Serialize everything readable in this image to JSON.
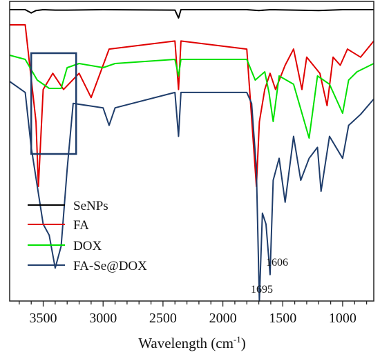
{
  "chart_data": {
    "type": "line",
    "title": "",
    "xlabel": "Wavelength (cm",
    "xlabel_sup": "-1",
    "xlabel_end": ")",
    "ylabel": "",
    "xlim": [
      3780,
      740
    ],
    "x_reversed": true,
    "y_ticks_shown": false,
    "grid": false,
    "legend_position": "bottom-left",
    "x_tick_labels": [
      "3500",
      "3000",
      "2500",
      "2000",
      "1500",
      "1000"
    ],
    "x_ticks": [
      3500,
      3000,
      2500,
      2000,
      1500,
      1000
    ],
    "series": [
      {
        "name": "SeNPs",
        "color": "#000000",
        "points": [
          [
            3780,
            1.0
          ],
          [
            3650,
            1.0
          ],
          [
            3600,
            0.6
          ],
          [
            3560,
            0.9
          ],
          [
            3500,
            1.0
          ],
          [
            3400,
            0.95
          ],
          [
            3300,
            0.95
          ],
          [
            3000,
            1.0
          ],
          [
            2400,
            0.95
          ],
          [
            2370,
            0.0
          ],
          [
            2350,
            1.0
          ],
          [
            2000,
            1.0
          ],
          [
            1800,
            1.0
          ],
          [
            1700,
            0.9
          ],
          [
            1600,
            1.0
          ],
          [
            1200,
            0.9
          ],
          [
            1000,
            1.0
          ],
          [
            740,
            1.0
          ]
        ]
      },
      {
        "name": "FA",
        "color": "#e00000",
        "points": [
          [
            3780,
            1.0
          ],
          [
            3650,
            1.0
          ],
          [
            3560,
            0.4
          ],
          [
            3540,
            0.0
          ],
          [
            3500,
            0.6
          ],
          [
            3420,
            0.7
          ],
          [
            3330,
            0.6
          ],
          [
            3200,
            0.7
          ],
          [
            3100,
            0.55
          ],
          [
            2950,
            0.85
          ],
          [
            2400,
            0.9
          ],
          [
            2370,
            0.6
          ],
          [
            2350,
            0.9
          ],
          [
            1800,
            0.85
          ],
          [
            1720,
            0.0
          ],
          [
            1695,
            0.4
          ],
          [
            1650,
            0.6
          ],
          [
            1606,
            0.7
          ],
          [
            1560,
            0.6
          ],
          [
            1480,
            0.75
          ],
          [
            1410,
            0.85
          ],
          [
            1340,
            0.6
          ],
          [
            1300,
            0.8
          ],
          [
            1190,
            0.7
          ],
          [
            1130,
            0.5
          ],
          [
            1080,
            0.8
          ],
          [
            1020,
            0.75
          ],
          [
            960,
            0.85
          ],
          [
            850,
            0.8
          ],
          [
            740,
            0.9
          ]
        ]
      },
      {
        "name": "DOX",
        "color": "#00e000",
        "points": [
          [
            3780,
            1.0
          ],
          [
            3650,
            0.95
          ],
          [
            3550,
            0.7
          ],
          [
            3450,
            0.6
          ],
          [
            3350,
            0.6
          ],
          [
            3300,
            0.85
          ],
          [
            3200,
            0.9
          ],
          [
            3000,
            0.85
          ],
          [
            2900,
            0.9
          ],
          [
            2400,
            0.95
          ],
          [
            2370,
            0.75
          ],
          [
            2350,
            0.95
          ],
          [
            1800,
            0.95
          ],
          [
            1730,
            0.7
          ],
          [
            1650,
            0.8
          ],
          [
            1615,
            0.55
          ],
          [
            1580,
            0.2
          ],
          [
            1530,
            0.75
          ],
          [
            1410,
            0.65
          ],
          [
            1280,
            0.0
          ],
          [
            1210,
            0.75
          ],
          [
            1110,
            0.65
          ],
          [
            1000,
            0.3
          ],
          [
            950,
            0.7
          ],
          [
            880,
            0.8
          ],
          [
            740,
            0.9
          ]
        ]
      },
      {
        "name": "FA-Se@DOX",
        "color": "#1f3d6b",
        "points": [
          [
            3780,
            1.0
          ],
          [
            3650,
            0.95
          ],
          [
            3600,
            0.7
          ],
          [
            3500,
            0.35
          ],
          [
            3450,
            0.3
          ],
          [
            3400,
            0.15
          ],
          [
            3350,
            0.25
          ],
          [
            3300,
            0.6
          ],
          [
            3250,
            0.9
          ],
          [
            3000,
            0.88
          ],
          [
            2950,
            0.8
          ],
          [
            2900,
            0.88
          ],
          [
            2400,
            0.95
          ],
          [
            2370,
            0.75
          ],
          [
            2350,
            0.95
          ],
          [
            1800,
            0.95
          ],
          [
            1760,
            0.9
          ],
          [
            1720,
            0.6
          ],
          [
            1695,
            0.0
          ],
          [
            1670,
            0.4
          ],
          [
            1640,
            0.35
          ],
          [
            1606,
            0.12
          ],
          [
            1580,
            0.55
          ],
          [
            1530,
            0.65
          ],
          [
            1480,
            0.45
          ],
          [
            1410,
            0.75
          ],
          [
            1350,
            0.55
          ],
          [
            1280,
            0.65
          ],
          [
            1210,
            0.7
          ],
          [
            1180,
            0.5
          ],
          [
            1110,
            0.75
          ],
          [
            1000,
            0.65
          ],
          [
            950,
            0.8
          ],
          [
            850,
            0.85
          ],
          [
            740,
            0.92
          ]
        ]
      }
    ],
    "annotations": [
      {
        "text": "1606",
        "x": 1606
      },
      {
        "text": "1695",
        "x": 1695
      }
    ],
    "highlight_box": {
      "x_from": 3600,
      "x_to": 3225,
      "color": "#1f3d6b"
    }
  }
}
